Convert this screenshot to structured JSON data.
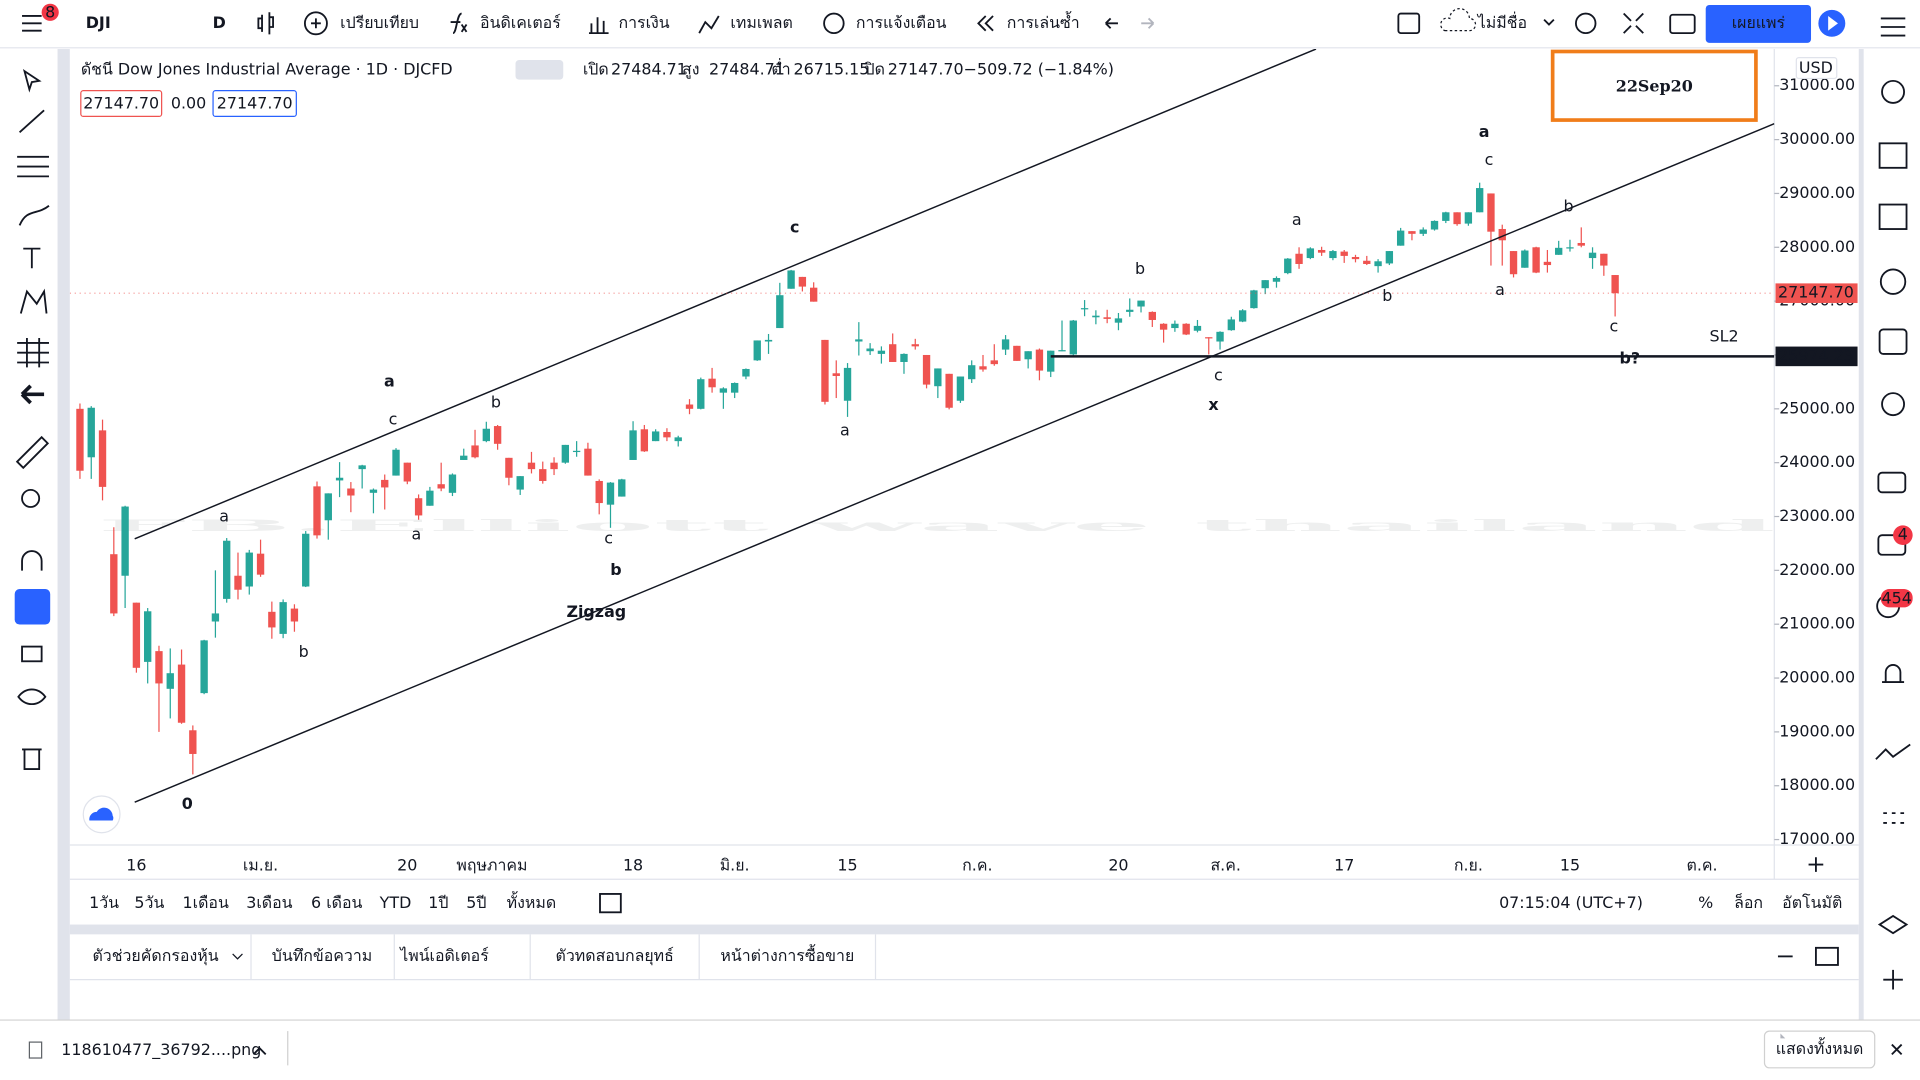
{
  "toolbar": {
    "badge": "8",
    "symbol": "DJI",
    "interval": "D",
    "buttons": [
      "เปรียบเทียบ",
      "อินดิเคเตอร์",
      "การเงิน",
      "เทมเพลต",
      "การแจ้งเตือน",
      "การเล่นซ้ำ"
    ],
    "layout_name": "ไม่มีชื่อ",
    "publish": "เผยแพร่"
  },
  "legend": {
    "title": "ดัชนี Dow Jones Industrial Average · 1D · DJCFD",
    "ohlc": [
      {
        "label": "เปิด",
        "value": "27484.71"
      },
      {
        "label": "สูง",
        "value": "27484.71"
      },
      {
        "label": "ต่ำ",
        "value": "26715.15"
      },
      {
        "label": "ปิด",
        "value": "27147.70"
      }
    ],
    "change": "−509.72 (−1.84%)",
    "boxes": [
      "27147.70",
      "0.00",
      "27147.70"
    ]
  },
  "chart": {
    "type": "candlestick",
    "watermark": "FB.Elliott wave thailand",
    "stamp": "22Sep20",
    "currency": "USD",
    "up_color": "#26a69a",
    "down_color": "#ef5350",
    "wave_color": "#9c3dbb",
    "sub_color": "#131722",
    "line_color": "#131722",
    "xlim": [
      -0.9,
      150.1
    ],
    "ylim": [
      16900,
      31500
    ],
    "yticks": [
      {
        "value": 31000,
        "label": "31000.00"
      },
      {
        "value": 30000,
        "label": "30000.00"
      },
      {
        "value": 29000,
        "label": "29000.00"
      },
      {
        "value": 28000,
        "label": "28000.00"
      },
      {
        "value": 27000,
        "label": "27000.00"
      },
      {
        "value": 26000,
        "label": "26000.00"
      },
      {
        "value": 25000,
        "label": "25000.00"
      },
      {
        "value": 24000,
        "label": "24000.00"
      },
      {
        "value": 23000,
        "label": "23000.00"
      },
      {
        "value": 22000,
        "label": "22000.00"
      },
      {
        "value": 21000,
        "label": "21000.00"
      },
      {
        "value": 20000,
        "label": "20000.00"
      },
      {
        "value": 19000,
        "label": "19000.00"
      },
      {
        "value": 18000,
        "label": "18000.00"
      },
      {
        "value": 17000,
        "label": "17000.00"
      }
    ],
    "xticks": [
      {
        "value": 5,
        "label": "16"
      },
      {
        "value": 16,
        "label": "เม.ย."
      },
      {
        "value": 29,
        "label": "20"
      },
      {
        "value": 36.5,
        "label": "พฤษภาคม"
      },
      {
        "value": 49,
        "label": "18"
      },
      {
        "value": 58,
        "label": "มิ.ย."
      },
      {
        "value": 68,
        "label": "15"
      },
      {
        "value": 79.5,
        "label": "ก.ค."
      },
      {
        "value": 92,
        "label": "20"
      },
      {
        "value": 101.5,
        "label": "ส.ค."
      },
      {
        "value": 112,
        "label": "17"
      },
      {
        "value": 123,
        "label": "ก.ย."
      },
      {
        "value": 132,
        "label": "15"
      },
      {
        "value": 143.7,
        "label": "ต.ค."
      }
    ],
    "candles": [
      [
        25000,
        25100,
        23700,
        23850
      ],
      [
        24100,
        25050,
        23700,
        25020
      ],
      [
        24600,
        24800,
        23300,
        23550
      ],
      [
        22300,
        22800,
        21150,
        21200
      ],
      [
        21900,
        23200,
        21300,
        23185
      ],
      [
        21400,
        21400,
        20100,
        20190
      ],
      [
        20300,
        21300,
        19900,
        21240
      ],
      [
        20500,
        20600,
        19000,
        19900
      ],
      [
        19800,
        20550,
        19250,
        20090
      ],
      [
        20250,
        20530,
        19150,
        19170
      ],
      [
        19030,
        19120,
        18210,
        18590
      ],
      [
        19720,
        20710,
        19700,
        20700
      ],
      [
        21050,
        22000,
        20750,
        21200
      ],
      [
        21470,
        22600,
        21400,
        22550
      ],
      [
        21900,
        22330,
        21460,
        21640
      ],
      [
        21700,
        22380,
        21550,
        22330
      ],
      [
        22310,
        22570,
        21880,
        21920
      ],
      [
        21230,
        21420,
        20730,
        20940
      ],
      [
        20820,
        21460,
        20740,
        21410
      ],
      [
        21290,
        21370,
        20860,
        21050
      ],
      [
        21700,
        22730,
        21690,
        22680
      ],
      [
        23560,
        23650,
        22590,
        22650
      ],
      [
        22930,
        23430,
        22570,
        23430
      ],
      [
        23670,
        24010,
        23360,
        23720
      ],
      [
        23520,
        23640,
        23080,
        23390
      ],
      [
        23880,
        23960,
        23520,
        23950
      ],
      [
        23440,
        23520,
        23060,
        23500
      ],
      [
        23680,
        23780,
        23130,
        23540
      ],
      [
        23760,
        24270,
        23760,
        24240
      ],
      [
        24000,
        24000,
        23600,
        23650
      ],
      [
        23340,
        23410,
        22940,
        23020
      ],
      [
        23200,
        23550,
        23200,
        23480
      ],
      [
        23600,
        24000,
        23470,
        23520
      ],
      [
        23440,
        23800,
        23380,
        23780
      ],
      [
        24050,
        24260,
        24050,
        24130
      ],
      [
        24320,
        24610,
        24080,
        24100
      ],
      [
        24400,
        24760,
        24380,
        24630
      ],
      [
        24680,
        24700,
        24240,
        24350
      ],
      [
        24090,
        24090,
        23580,
        23720
      ],
      [
        23500,
        23750,
        23400,
        23750
      ],
      [
        24000,
        24200,
        23800,
        23880
      ],
      [
        23880,
        24020,
        23610,
        23660
      ],
      [
        24000,
        24100,
        23770,
        23880
      ],
      [
        24000,
        24330,
        23980,
        24330
      ],
      [
        24220,
        24400,
        24110,
        24220
      ],
      [
        24260,
        24370,
        23760,
        23760
      ],
      [
        23660,
        23690,
        23040,
        23250
      ],
      [
        23220,
        23640,
        22790,
        23630
      ],
      [
        23370,
        23700,
        23370,
        23690
      ],
      [
        24050,
        24770,
        24050,
        24600
      ],
      [
        24620,
        24700,
        24200,
        24210
      ],
      [
        24400,
        24620,
        24400,
        24580
      ],
      [
        24570,
        24640,
        24400,
        24470
      ],
      [
        24400,
        24500,
        24300,
        24470
      ],
      [
        25080,
        25180,
        24900,
        25000
      ],
      [
        25000,
        25580,
        24990,
        25550
      ],
      [
        25560,
        25760,
        25300,
        25400
      ],
      [
        25300,
        25400,
        25000,
        25380
      ],
      [
        25300,
        25490,
        25200,
        25480
      ],
      [
        25600,
        25750,
        25550,
        25740
      ],
      [
        25900,
        26270,
        25890,
        26270
      ],
      [
        26250,
        26390,
        26020,
        26280
      ],
      [
        26500,
        27340,
        26500,
        27110
      ],
      [
        27230,
        27580,
        27230,
        27570
      ],
      [
        27450,
        27450,
        27180,
        27270
      ],
      [
        27250,
        27350,
        26990,
        26990
      ],
      [
        26280,
        26280,
        25080,
        25130
      ],
      [
        25660,
        25900,
        25200,
        25610
      ],
      [
        25150,
        25850,
        24850,
        25760
      ],
      [
        26250,
        26610,
        25990,
        26290
      ],
      [
        26070,
        26220,
        26000,
        26120
      ],
      [
        26020,
        26160,
        25840,
        26080
      ],
      [
        26200,
        26400,
        25870,
        25870
      ],
      [
        25870,
        26030,
        25650,
        26020
      ],
      [
        26200,
        26300,
        26100,
        26160
      ],
      [
        26000,
        26000,
        25380,
        25450
      ],
      [
        25420,
        25750,
        25200,
        25750
      ],
      [
        25650,
        25650,
        24990,
        25020
      ],
      [
        25150,
        25600,
        25110,
        25600
      ],
      [
        25550,
        25900,
        25480,
        25810
      ],
      [
        25790,
        26000,
        25690,
        25730
      ],
      [
        25900,
        26200,
        25800,
        25830
      ],
      [
        26100,
        26370,
        26000,
        26290
      ],
      [
        26170,
        26170,
        25890,
        25890
      ],
      [
        25920,
        26070,
        25750,
        26070
      ],
      [
        26100,
        26120,
        25530,
        25710
      ],
      [
        25690,
        26080,
        25590,
        26080
      ],
      [
        26090,
        26640,
        26070,
        26090
      ],
      [
        26010,
        26650,
        25960,
        26640
      ],
      [
        26870,
        27020,
        26720,
        26870
      ],
      [
        26700,
        26830,
        26570,
        26730
      ],
      [
        26700,
        26840,
        26590,
        26670
      ],
      [
        26600,
        26780,
        26460,
        26680
      ],
      [
        26800,
        27050,
        26710,
        26840
      ],
      [
        26900,
        27010,
        26790,
        27010
      ],
      [
        26800,
        26810,
        26520,
        26650
      ],
      [
        26580,
        26590,
        26230,
        26470
      ],
      [
        26500,
        26640,
        26430,
        26580
      ],
      [
        26580,
        26590,
        26370,
        26380
      ],
      [
        26450,
        26650,
        26420,
        26540
      ],
      [
        26330,
        26330,
        26010,
        26310
      ],
      [
        26250,
        26440,
        26100,
        26430
      ],
      [
        26460,
        26710,
        26450,
        26660
      ],
      [
        26620,
        26850,
        26610,
        26830
      ],
      [
        26870,
        27210,
        26860,
        27200
      ],
      [
        27240,
        27390,
        27130,
        27390
      ],
      [
        27360,
        27460,
        27250,
        27430
      ],
      [
        27520,
        27800,
        27500,
        27790
      ],
      [
        27880,
        28000,
        27600,
        27690
      ],
      [
        27800,
        28000,
        27780,
        27980
      ],
      [
        27950,
        28010,
        27840,
        27900
      ],
      [
        27800,
        27950,
        27760,
        27930
      ],
      [
        27920,
        27950,
        27710,
        27840
      ],
      [
        27820,
        27860,
        27720,
        27780
      ],
      [
        27750,
        27840,
        27670,
        27690
      ],
      [
        27650,
        27780,
        27530,
        27740
      ],
      [
        27700,
        27930,
        27670,
        27930
      ],
      [
        28030,
        28360,
        28030,
        28310
      ],
      [
        28300,
        28300,
        28130,
        28250
      ],
      [
        28250,
        28370,
        28210,
        28330
      ],
      [
        28330,
        28500,
        28310,
        28490
      ],
      [
        28490,
        28660,
        28450,
        28650
      ],
      [
        28650,
        28650,
        28400,
        28430
      ],
      [
        28440,
        28650,
        28400,
        28650
      ],
      [
        28650,
        29200,
        28650,
        29100
      ],
      [
        29000,
        29000,
        27660,
        28290
      ],
      [
        28340,
        28420,
        27660,
        28130
      ],
      [
        27930,
        27930,
        27440,
        27500
      ],
      [
        27620,
        27960,
        27620,
        27940
      ],
      [
        28000,
        28010,
        27520,
        27530
      ],
      [
        27730,
        27950,
        27530,
        27670
      ],
      [
        27860,
        28120,
        27860,
        27990
      ],
      [
        28000,
        28140,
        27920,
        28000
      ],
      [
        28080,
        28370,
        28000,
        28030
      ],
      [
        27800,
        28000,
        27600,
        27900
      ],
      [
        27880,
        27880,
        27470,
        27660
      ],
      [
        27484.71,
        27484.71,
        26715.15,
        27147.7
      ]
    ],
    "trendlines": [
      {
        "x": [
          4.85,
          109.5
        ],
        "y": [
          22585,
          31682
        ]
      },
      {
        "x": [
          4.85,
          150.1
        ],
        "y": [
          17695,
          30295
        ]
      }
    ],
    "price_lines": [
      {
        "value": 27147.7,
        "label": "27147.70",
        "color": "#ef5350"
      },
      {
        "value": 25974.23,
        "label": "25974.23",
        "color": "#131722",
        "from": 86
      }
    ],
    "annotations": [
      {
        "text": "a",
        "style": "sub"
      },
      {
        "text": "b",
        "style": "sub"
      },
      {
        "text": "a",
        "style": "sub"
      },
      {
        "text": "c",
        "style": "sub"
      },
      {
        "text": "b",
        "style": "sub"
      },
      {
        "text": "c",
        "style": "sub"
      },
      {
        "text": "a",
        "style": "sub"
      },
      {
        "text": "b",
        "style": "sub"
      },
      {
        "text": "c",
        "style": "sub"
      },
      {
        "text": "a",
        "style": "sub"
      },
      {
        "text": "b",
        "style": "sub"
      },
      {
        "text": "c",
        "style": "sub"
      },
      {
        "text": "a",
        "style": "sub"
      },
      {
        "text": "b",
        "style": "sub"
      },
      {
        "text": "c",
        "style": "sub"
      },
      {
        "text": "0",
        "style": "wave"
      },
      {
        "text": "a",
        "style": "wave"
      },
      {
        "text": "b",
        "style": "wave"
      },
      {
        "text": "Zigzag",
        "style": "wave"
      },
      {
        "text": "c",
        "style": "wave"
      },
      {
        "text": "x",
        "style": "wave"
      },
      {
        "text": "a",
        "style": "wave"
      },
      {
        "text": "b?",
        "style": "wave"
      },
      {
        "text": "SL2",
        "style": "wave"
      }
    ]
  },
  "bottom_bar": {
    "ranges": [
      "1วัน",
      "5วัน",
      "1เดือน",
      "3เดือน",
      "6 เดือน",
      "YTD",
      "1ปี",
      "5ปี",
      "ทั้งหมด"
    ],
    "clock": "07:15:04 (UTC+7)",
    "scale_options": [
      "%",
      "ล็อก",
      "อัตโนมัติ"
    ]
  },
  "panel": {
    "tabs": [
      "ตัวช่วยคัดกรองหุ้น",
      "บันทึกข้อความ",
      "ไพน์เอดิเตอร์",
      "ตัวทดสอบกลยุทธ์",
      "หน้าต่างการซื้อขาย"
    ],
    "active_tab": 4
  },
  "download": {
    "file": "118610477_36792....png",
    "show_all": "แสดงทั้งหมด"
  },
  "sidebar": {
    "badges": [
      "4",
      "454"
    ]
  }
}
